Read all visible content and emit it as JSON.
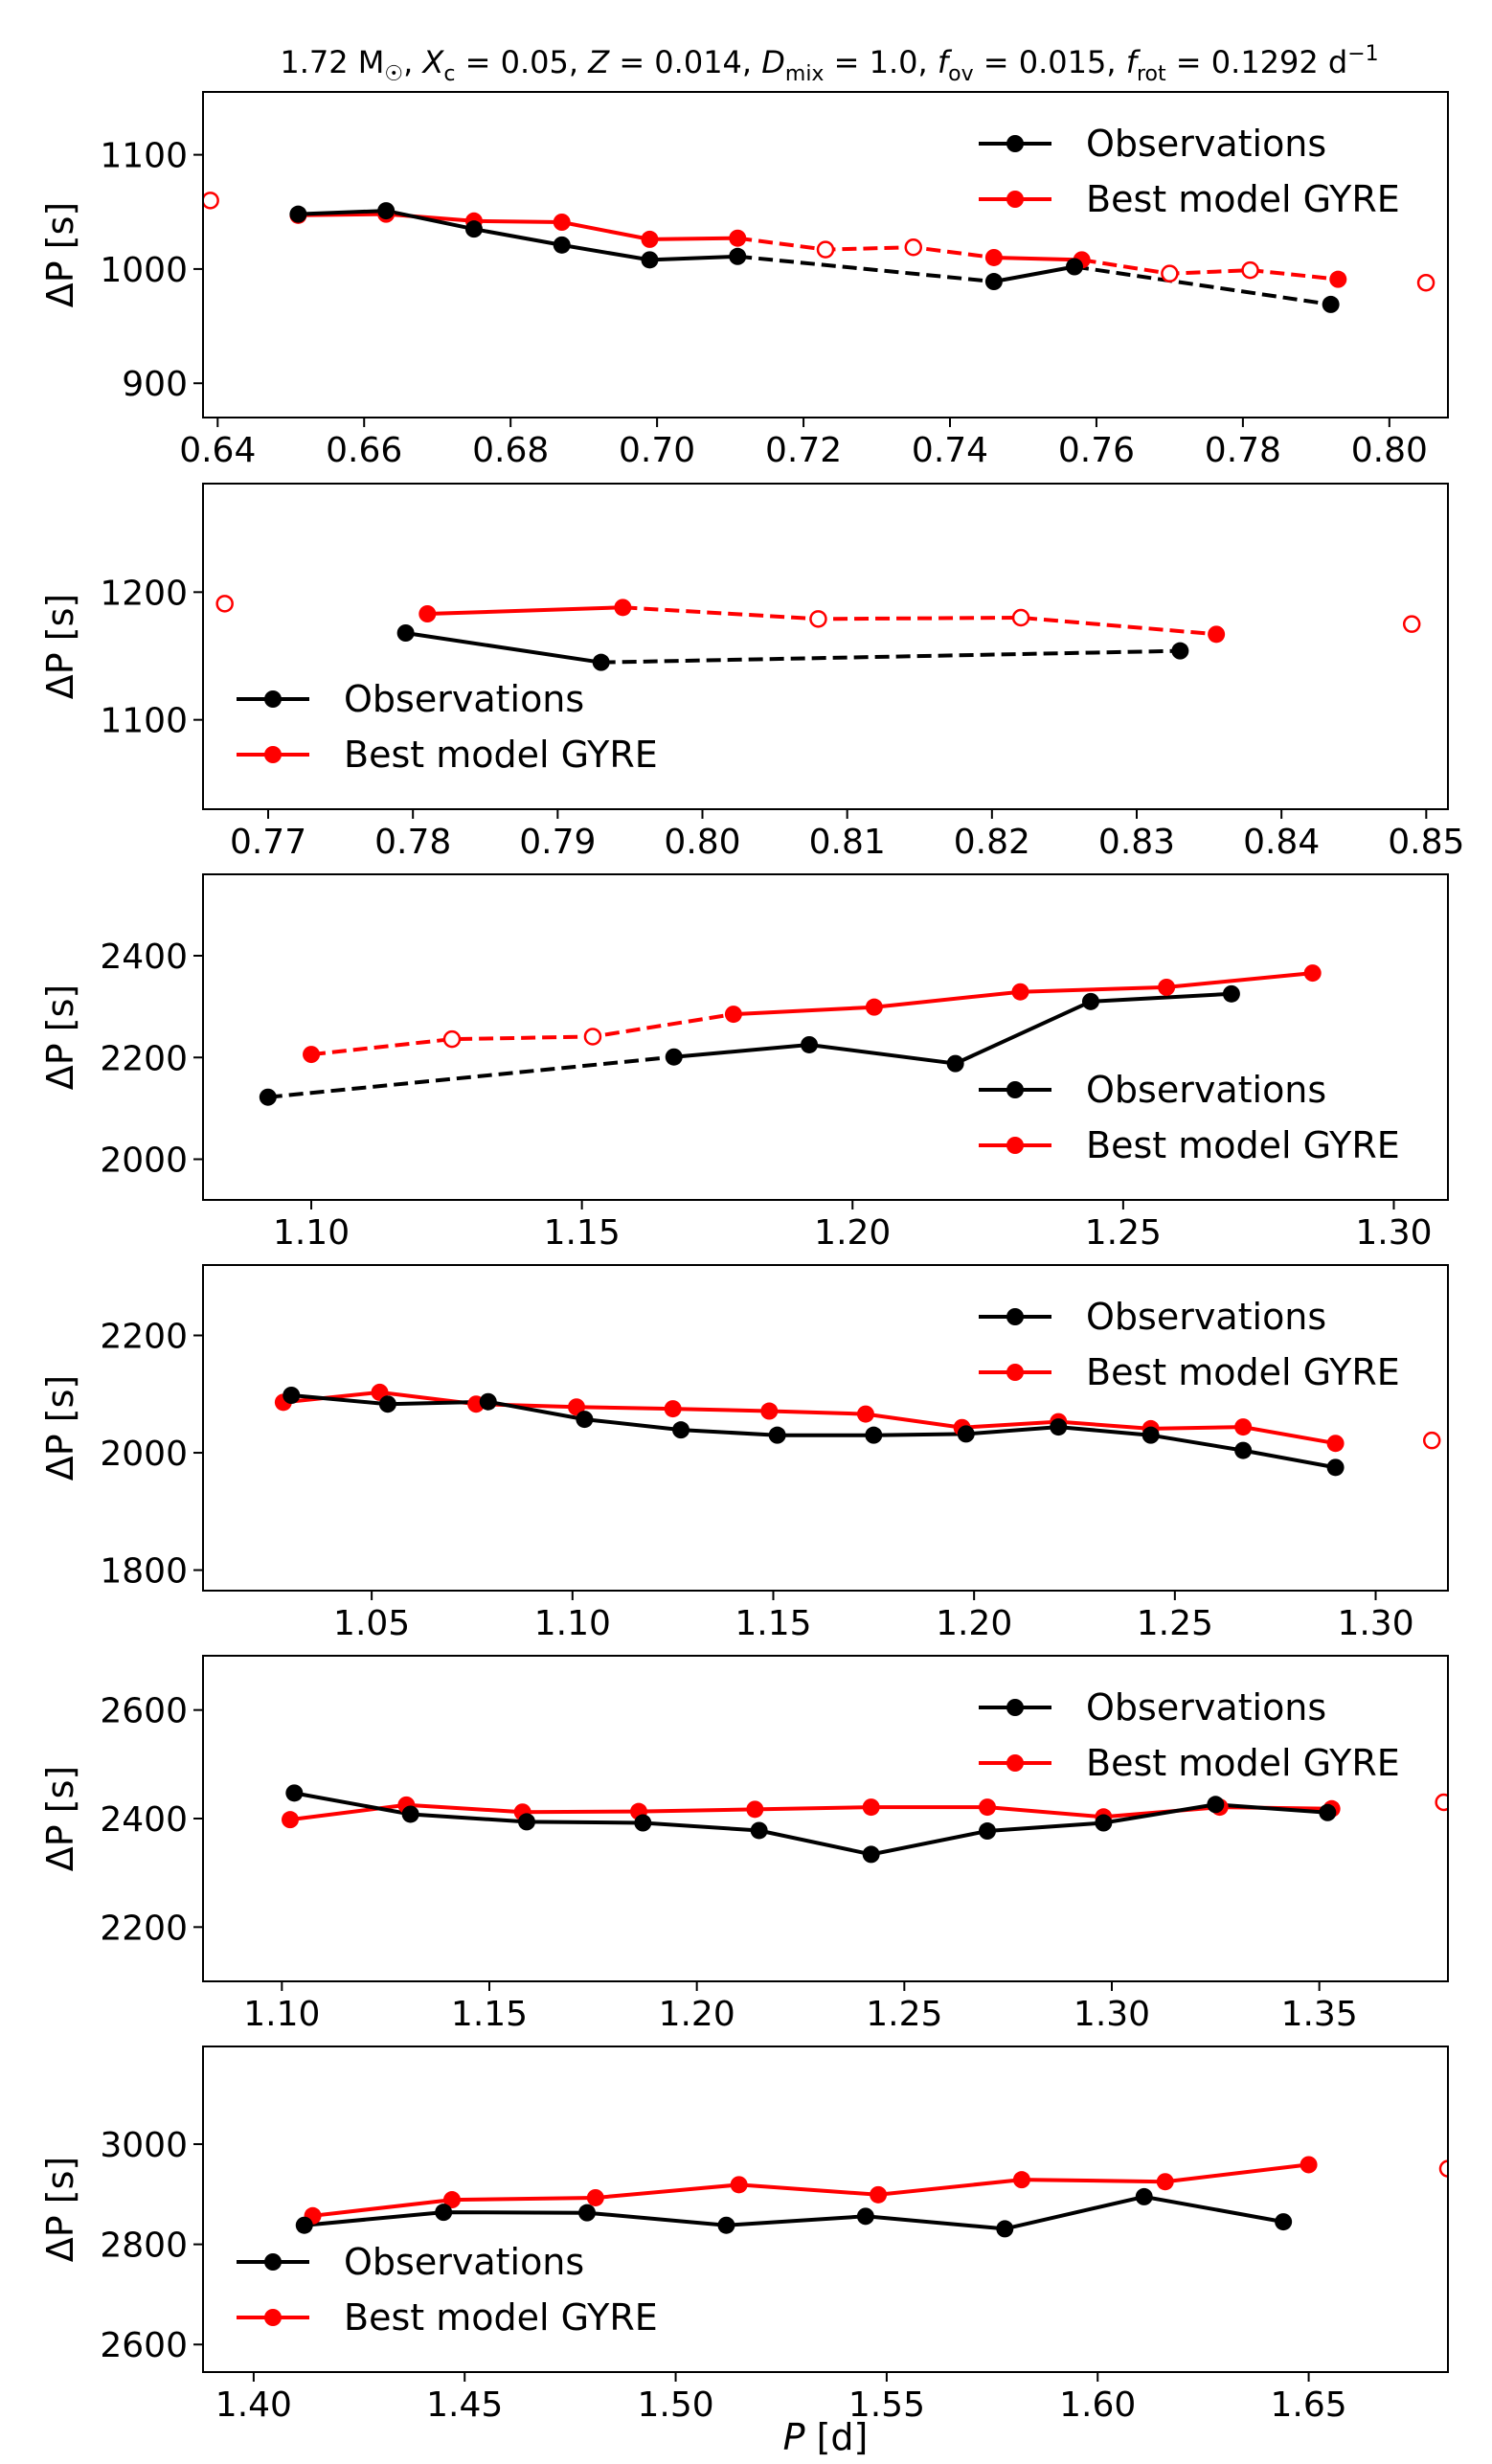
{
  "figure": {
    "title": "1.72 M☉, Xc = 0.05, Z = 0.014, Dmix = 1.0, fov = 0.015, frot = 0.1292 d⁻¹",
    "title_parts": {
      "mass": "1.72 M",
      "sun": "☉",
      "xc_sym": "X",
      "xc_sub": "c",
      "xc_val": " = 0.05, ",
      "z_sym": "Z",
      "z_val": " = 0.014, ",
      "d_sym": "D",
      "d_sub": "mix",
      "d_val": " = 1.0, ",
      "fov_sym": "f",
      "fov_sub": "ov",
      "fov_val": " = 0.015, ",
      "frot_sym": "f",
      "frot_sub": "rot",
      "frot_val": " = 0.1292 d",
      "frot_sup": "−1"
    },
    "ylabel_main": "ΔP",
    "ylabel_unit": " [s]",
    "xlabel_main": "P",
    "xlabel_unit": " [d]",
    "colors": {
      "observations": "#000000",
      "model": "#ff0000"
    }
  },
  "chart_data": [
    {
      "type": "line",
      "xlim": [
        0.638,
        0.808
      ],
      "ylim": [
        870,
        1155
      ],
      "xticks": [
        "0.64",
        "0.66",
        "0.68",
        "0.70",
        "0.72",
        "0.74",
        "0.76",
        "0.78",
        "0.80"
      ],
      "yticks": [
        "900",
        "1000",
        "1100"
      ],
      "legend": "top-right",
      "legend_labels": [
        "Observations",
        "Best model GYRE"
      ],
      "observations": {
        "name": "Observations",
        "segments": [
          [
            [
              0.651,
              1048
            ],
            [
              0.663,
              1051
            ],
            [
              0.675,
              1035
            ],
            [
              0.687,
              1021
            ],
            [
              0.699,
              1008
            ],
            [
              0.711,
              1011
            ]
          ],
          [
            [
              0.746,
              989
            ],
            [
              0.757,
              1002
            ]
          ],
          [
            [
              0.792,
              969
            ]
          ]
        ],
        "gaps": [
          [
            [
              0.711,
              1011
            ],
            [
              0.746,
              989
            ]
          ],
          [
            [
              0.757,
              1002
            ],
            [
              0.792,
              969
            ]
          ]
        ]
      },
      "model": {
        "name": "Best model GYRE",
        "segments": [
          [
            [
              0.651,
              1047
            ],
            [
              0.663,
              1048
            ],
            [
              0.675,
              1042
            ],
            [
              0.687,
              1041
            ],
            [
              0.699,
              1026
            ],
            [
              0.711,
              1027
            ]
          ],
          [
            [
              0.746,
              1010
            ],
            [
              0.758,
              1008
            ]
          ],
          [
            [
              0.793,
              991
            ]
          ]
        ],
        "gaps": [
          [
            [
              0.711,
              1027
            ],
            [
              0.723,
              1017
            ],
            [
              0.735,
              1019
            ],
            [
              0.746,
              1010
            ]
          ],
          [
            [
              0.758,
              1008
            ],
            [
              0.77,
              996
            ],
            [
              0.781,
              999
            ],
            [
              0.793,
              991
            ]
          ]
        ],
        "unmatched": [
          [
            0.639,
            1060
          ],
          [
            0.723,
            1017
          ],
          [
            0.735,
            1019
          ],
          [
            0.77,
            996
          ],
          [
            0.781,
            999
          ],
          [
            0.805,
            988
          ]
        ]
      }
    },
    {
      "type": "line",
      "xlim": [
        0.7655,
        0.8515
      ],
      "ylim": [
        1030,
        1285
      ],
      "xticks": [
        "0.77",
        "0.78",
        "0.79",
        "0.80",
        "0.81",
        "0.82",
        "0.83",
        "0.84",
        "0.85"
      ],
      "yticks": [
        "1100",
        "1200"
      ],
      "legend": "lower-left",
      "legend_labels": [
        "Observations",
        "Best model GYRE"
      ],
      "observations": {
        "name": "Observations",
        "segments": [
          [
            [
              0.7795,
              1168
            ],
            [
              0.793,
              1145
            ]
          ],
          [
            [
              0.833,
              1154
            ]
          ]
        ],
        "gaps": [
          [
            [
              0.793,
              1145
            ],
            [
              0.833,
              1154
            ]
          ]
        ]
      },
      "model": {
        "name": "Best model GYRE",
        "segments": [
          [
            [
              0.781,
              1183
            ],
            [
              0.7945,
              1188
            ]
          ],
          [
            [
              0.8355,
              1167
            ]
          ]
        ],
        "gaps": [
          [
            [
              0.7945,
              1188
            ],
            [
              0.808,
              1179
            ],
            [
              0.822,
              1180
            ],
            [
              0.8355,
              1167
            ]
          ]
        ],
        "unmatched": [
          [
            0.767,
            1191
          ],
          [
            0.808,
            1179
          ],
          [
            0.822,
            1180
          ],
          [
            0.849,
            1175
          ]
        ]
      }
    },
    {
      "type": "line",
      "xlim": [
        1.08,
        1.31
      ],
      "ylim": [
        1920,
        2560
      ],
      "xticks": [
        "1.10",
        "1.15",
        "1.20",
        "1.25",
        "1.30"
      ],
      "yticks": [
        "2000",
        "2200",
        "2400"
      ],
      "legend": "lower-right",
      "legend_labels": [
        "Observations",
        "Best model GYRE"
      ],
      "observations": {
        "name": "Observations",
        "segments": [
          [
            [
              1.092,
              2122
            ]
          ],
          [
            [
              1.167,
              2201
            ],
            [
              1.192,
              2225
            ],
            [
              1.219,
              2188
            ],
            [
              1.244,
              2310
            ],
            [
              1.27,
              2325
            ]
          ]
        ],
        "gaps": [
          [
            [
              1.092,
              2122
            ],
            [
              1.167,
              2201
            ]
          ]
        ]
      },
      "model": {
        "name": "Best model GYRE",
        "segments": [
          [
            [
              1.1,
              2206
            ]
          ],
          [
            [
              1.178,
              2285
            ],
            [
              1.204,
              2299
            ],
            [
              1.231,
              2329
            ],
            [
              1.258,
              2338
            ],
            [
              1.285,
              2366
            ]
          ]
        ],
        "gaps": [
          [
            [
              1.1,
              2206
            ],
            [
              1.126,
              2236
            ],
            [
              1.152,
              2241
            ],
            [
              1.178,
              2285
            ]
          ]
        ],
        "unmatched": [
          [
            1.126,
            2236
          ],
          [
            1.152,
            2241
          ]
        ]
      }
    },
    {
      "type": "line",
      "xlim": [
        1.008,
        1.318
      ],
      "ylim": [
        1765,
        2320
      ],
      "xticks": [
        "1.05",
        "1.10",
        "1.15",
        "1.20",
        "1.25",
        "1.30"
      ],
      "yticks": [
        "1800",
        "2000",
        "2200"
      ],
      "legend": "top-right",
      "legend_labels": [
        "Observations",
        "Best model GYRE"
      ],
      "observations": {
        "name": "Observations",
        "segments": [
          [
            [
              1.03,
              2098
            ],
            [
              1.054,
              2083
            ],
            [
              1.079,
              2087
            ],
            [
              1.103,
              2057
            ],
            [
              1.127,
              2039
            ],
            [
              1.151,
              2030
            ],
            [
              1.175,
              2030
            ],
            [
              1.198,
              2032
            ],
            [
              1.221,
              2044
            ],
            [
              1.244,
              2030
            ],
            [
              1.267,
              2004
            ],
            [
              1.29,
              1975
            ]
          ]
        ],
        "gaps": []
      },
      "model": {
        "name": "Best model GYRE",
        "segments": [
          [
            [
              1.028,
              2086
            ],
            [
              1.052,
              2103
            ],
            [
              1.076,
              2083
            ],
            [
              1.101,
              2078
            ],
            [
              1.125,
              2075
            ],
            [
              1.149,
              2071
            ],
            [
              1.173,
              2066
            ],
            [
              1.197,
              2043
            ],
            [
              1.221,
              2053
            ],
            [
              1.244,
              2041
            ],
            [
              1.267,
              2044
            ],
            [
              1.29,
              2016
            ]
          ]
        ],
        "gaps": [],
        "unmatched": [
          [
            1.314,
            2021
          ]
        ]
      }
    },
    {
      "type": "line",
      "xlim": [
        1.081,
        1.381
      ],
      "ylim": [
        2100,
        2700
      ],
      "xticks": [
        "1.10",
        "1.15",
        "1.20",
        "1.25",
        "1.30",
        "1.35"
      ],
      "yticks": [
        "2200",
        "2400",
        "2600"
      ],
      "legend": "top-right",
      "legend_labels": [
        "Observations",
        "Best model GYRE"
      ],
      "observations": {
        "name": "Observations",
        "segments": [
          [
            [
              1.103,
              2447
            ],
            [
              1.131,
              2408
            ],
            [
              1.159,
              2394
            ],
            [
              1.187,
              2392
            ],
            [
              1.215,
              2378
            ],
            [
              1.242,
              2334
            ],
            [
              1.27,
              2377
            ],
            [
              1.298,
              2392
            ],
            [
              1.325,
              2426
            ],
            [
              1.352,
              2411
            ]
          ]
        ],
        "gaps": []
      },
      "model": {
        "name": "Best model GYRE",
        "segments": [
          [
            [
              1.102,
              2398
            ],
            [
              1.13,
              2425
            ],
            [
              1.158,
              2412
            ],
            [
              1.186,
              2413
            ],
            [
              1.214,
              2417
            ],
            [
              1.242,
              2421
            ],
            [
              1.27,
              2421
            ],
            [
              1.298,
              2403
            ],
            [
              1.326,
              2421
            ],
            [
              1.353,
              2418
            ]
          ]
        ],
        "gaps": [],
        "unmatched": [
          [
            1.38,
            2430
          ]
        ]
      }
    },
    {
      "type": "line",
      "xlim": [
        1.388,
        1.683
      ],
      "ylim": [
        2545,
        3195
      ],
      "xticks": [
        "1.40",
        "1.45",
        "1.50",
        "1.55",
        "1.60",
        "1.65"
      ],
      "yticks": [
        "2600",
        "2800",
        "3000"
      ],
      "legend": "lower-left",
      "legend_labels": [
        "Observations",
        "Best model GYRE"
      ],
      "observations": {
        "name": "Observations",
        "segments": [
          [
            [
              1.412,
              2838
            ],
            [
              1.445,
              2864
            ],
            [
              1.479,
              2863
            ],
            [
              1.512,
              2838
            ],
            [
              1.545,
              2856
            ],
            [
              1.578,
              2831
            ],
            [
              1.611,
              2895
            ],
            [
              1.644,
              2845
            ]
          ]
        ],
        "gaps": []
      },
      "model": {
        "name": "Best model GYRE",
        "segments": [
          [
            [
              1.414,
              2857
            ],
            [
              1.447,
              2889
            ],
            [
              1.481,
              2893
            ],
            [
              1.515,
              2919
            ],
            [
              1.548,
              2899
            ],
            [
              1.582,
              2929
            ],
            [
              1.616,
              2925
            ],
            [
              1.65,
              2959
            ]
          ]
        ],
        "gaps": [],
        "unmatched": [
          [
            1.683,
            2951
          ]
        ]
      }
    }
  ]
}
